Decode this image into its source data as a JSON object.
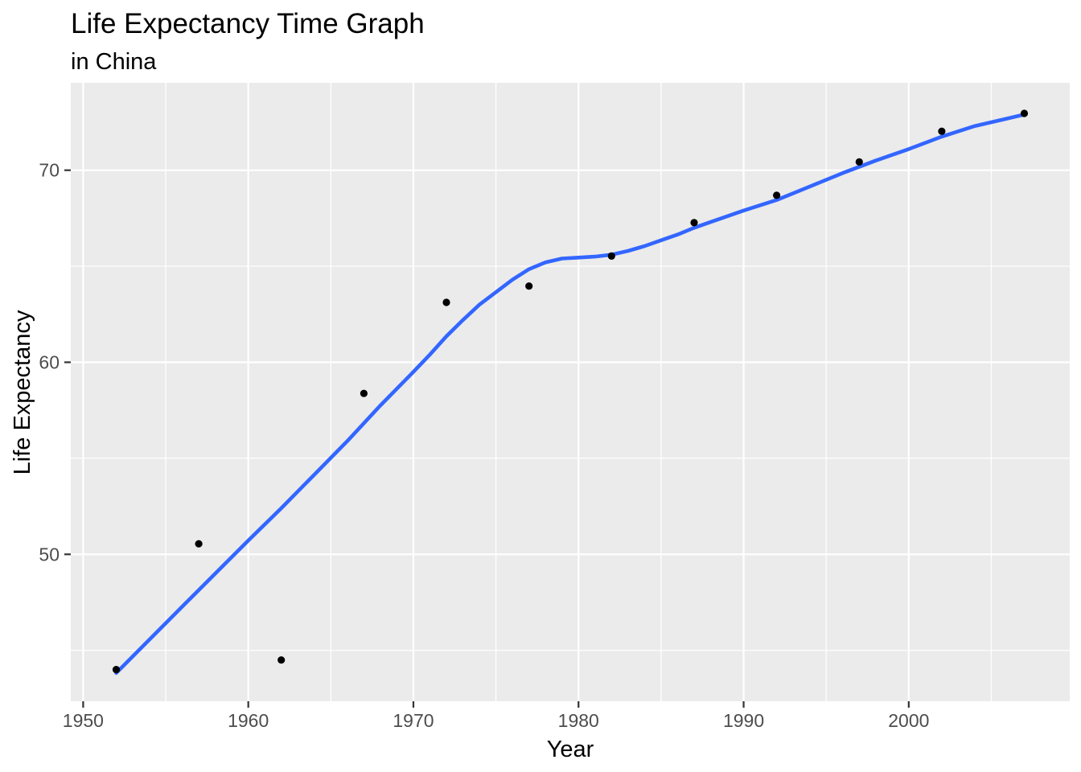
{
  "chart_data": {
    "type": "scatter",
    "title": "Life Expectancy Time Graph",
    "subtitle": "in China",
    "xlabel": "Year",
    "ylabel": "Life Expectancy",
    "legend_position": "none",
    "grid": true,
    "x_domain": [
      1949.25,
      2009.75
    ],
    "y_domain": [
      42.35,
      74.55
    ],
    "x_ticks_major": [
      1950,
      1960,
      1970,
      1980,
      1990,
      2000
    ],
    "x_ticks_minor": [
      1955,
      1965,
      1975,
      1985,
      1995,
      2005
    ],
    "y_ticks_major": [
      50,
      60,
      70
    ],
    "y_ticks_minor": [
      45,
      55,
      65
    ],
    "points": [
      {
        "year": 1952,
        "lifeExp": 44.0
      },
      {
        "year": 1957,
        "lifeExp": 50.55
      },
      {
        "year": 1962,
        "lifeExp": 44.5
      },
      {
        "year": 1967,
        "lifeExp": 58.38
      },
      {
        "year": 1972,
        "lifeExp": 63.12
      },
      {
        "year": 1977,
        "lifeExp": 63.97
      },
      {
        "year": 1982,
        "lifeExp": 65.53
      },
      {
        "year": 1987,
        "lifeExp": 67.27
      },
      {
        "year": 1992,
        "lifeExp": 68.69
      },
      {
        "year": 1997,
        "lifeExp": 70.43
      },
      {
        "year": 2002,
        "lifeExp": 72.03
      },
      {
        "year": 2007,
        "lifeExp": 72.96
      }
    ],
    "smooth_line": [
      [
        1952,
        43.82
      ],
      [
        1954,
        45.55
      ],
      [
        1956,
        47.28
      ],
      [
        1958,
        49.0
      ],
      [
        1960,
        50.72
      ],
      [
        1962,
        52.4
      ],
      [
        1964,
        54.15
      ],
      [
        1966,
        55.9
      ],
      [
        1968,
        57.75
      ],
      [
        1970,
        59.5
      ],
      [
        1971,
        60.4
      ],
      [
        1972,
        61.35
      ],
      [
        1973,
        62.2
      ],
      [
        1974,
        63.0
      ],
      [
        1975,
        63.65
      ],
      [
        1976,
        64.3
      ],
      [
        1977,
        64.85
      ],
      [
        1978,
        65.2
      ],
      [
        1979,
        65.4
      ],
      [
        1980,
        65.45
      ],
      [
        1981,
        65.5
      ],
      [
        1982,
        65.6
      ],
      [
        1983,
        65.8
      ],
      [
        1984,
        66.05
      ],
      [
        1985,
        66.35
      ],
      [
        1986,
        66.65
      ],
      [
        1987,
        67.0
      ],
      [
        1988,
        67.3
      ],
      [
        1990,
        67.9
      ],
      [
        1992,
        68.45
      ],
      [
        1994,
        69.15
      ],
      [
        1996,
        69.85
      ],
      [
        1998,
        70.5
      ],
      [
        2000,
        71.1
      ],
      [
        2002,
        71.75
      ],
      [
        2004,
        72.3
      ],
      [
        2006,
        72.7
      ],
      [
        2007,
        72.9
      ]
    ],
    "colors": {
      "page_bg": "#FFFFFF",
      "panel_bg": "#EBEBEB",
      "grid_line": "#FFFFFF",
      "point": "#000000",
      "smooth_line": "#3366FF",
      "tick_label": "#4D4D4D",
      "tick_mark": "#333333",
      "text": "#000000"
    }
  }
}
